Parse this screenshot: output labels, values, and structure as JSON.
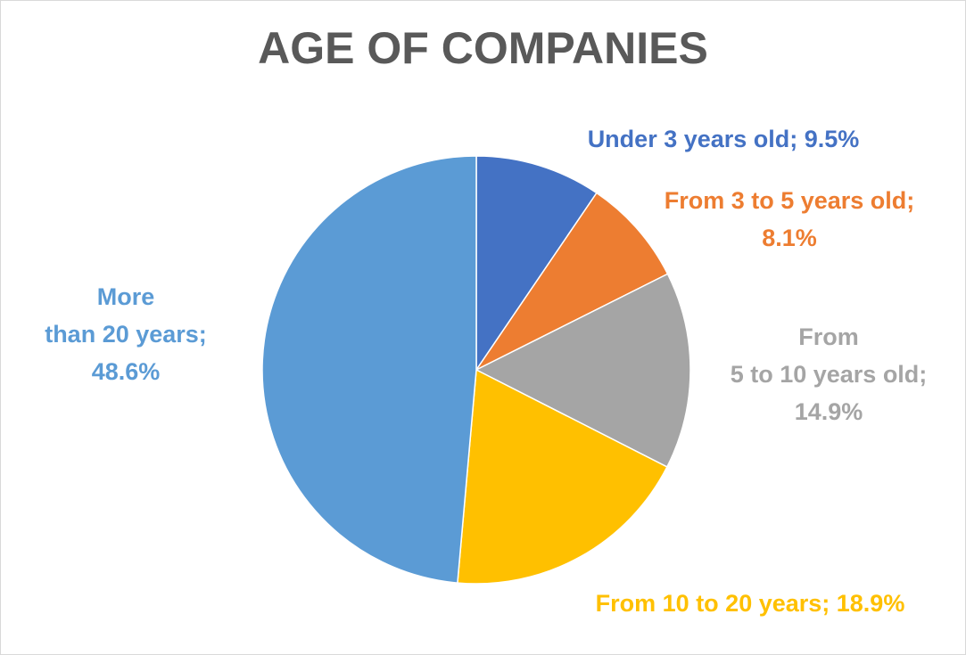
{
  "chart_data": {
    "type": "pie",
    "title": "AGE OF COMPANIES",
    "slices": [
      {
        "label": "Under 3 years old",
        "value": 9.5,
        "display_lines": [
          "Under 3 years old; 9.5%"
        ],
        "color": "#4472C4"
      },
      {
        "label": "From 3 to 5 years old",
        "value": 8.1,
        "display_lines": [
          "From 3 to 5 years old;",
          "8.1%"
        ],
        "color": "#ED7D31"
      },
      {
        "label": "From 5 to 10 years old",
        "value": 14.9,
        "display_lines": [
          "From",
          "5 to 10 years old;",
          "14.9%"
        ],
        "color": "#A5A5A5"
      },
      {
        "label": "From 10 to 20 years",
        "value": 18.9,
        "display_lines": [
          "From 10 to 20 years; 18.9%"
        ],
        "color": "#FFC000"
      },
      {
        "label": "More than 20 years",
        "value": 48.6,
        "display_lines": [
          "More",
          "than 20 years;",
          "48.6%"
        ],
        "color": "#5B9BD5"
      }
    ],
    "unit": "%",
    "legend": "none",
    "data_labels": true
  }
}
